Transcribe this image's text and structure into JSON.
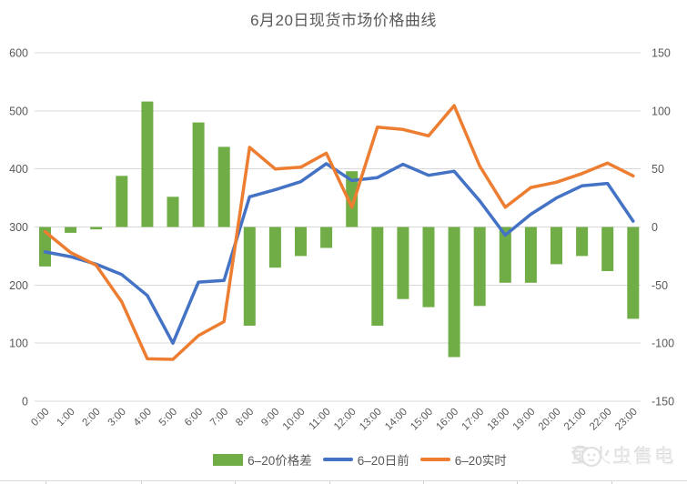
{
  "chart_data": {
    "type": "bar",
    "combo": "bar+line",
    "title": "6月20日现货市场价格曲线",
    "categories": [
      "0:00",
      "1:00",
      "2:00",
      "3:00",
      "4:00",
      "5:00",
      "6:00",
      "7:00",
      "8:00",
      "9:00",
      "10:00",
      "11:00",
      "12:00",
      "13:00",
      "14:00",
      "15:00",
      "16:00",
      "17:00",
      "18:00",
      "19:00",
      "20:00",
      "21:00",
      "22:00",
      "23:00"
    ],
    "series": [
      {
        "key": "price-diff",
        "name": "6–20价格差",
        "type": "bar",
        "axis": "right",
        "color": "#70AD47",
        "values": [
          -34,
          -5,
          -2,
          44,
          108,
          26,
          90,
          69,
          -85,
          -35,
          -25,
          -18,
          48,
          -85,
          -62,
          -69,
          -112,
          -68,
          -48,
          -48,
          -32,
          -25,
          -38,
          -79
        ]
      },
      {
        "key": "day-ahead",
        "name": "6–20日前",
        "type": "line",
        "axis": "left",
        "color": "#4472C4",
        "values": [
          257,
          249,
          236,
          218,
          182,
          100,
          205,
          208,
          352,
          364,
          378,
          409,
          380,
          385,
          408,
          389,
          396,
          345,
          286,
          322,
          350,
          371,
          375,
          310
        ]
      },
      {
        "key": "real-time",
        "name": "6–20实时",
        "type": "line",
        "axis": "left",
        "color": "#ED7D31",
        "values": [
          292,
          256,
          234,
          171,
          73,
          72,
          113,
          137,
          437,
          400,
          403,
          427,
          334,
          472,
          468,
          457,
          509,
          405,
          334,
          368,
          377,
          392,
          410,
          388
        ]
      }
    ],
    "axes": {
      "left": {
        "min": 0,
        "max": 600,
        "step": 100,
        "tick_values": [
          0,
          100,
          200,
          300,
          400,
          500,
          600
        ]
      },
      "right": {
        "min": -150,
        "max": 150,
        "step": 50,
        "tick_values": [
          -150,
          -100,
          -50,
          0,
          50,
          100,
          150
        ]
      }
    },
    "grid": true,
    "legend_position": "bottom",
    "gridline_color": "#D9D9D9",
    "axis_text_color": "#595959"
  },
  "watermark": {
    "text": "萤火虫售电"
  }
}
